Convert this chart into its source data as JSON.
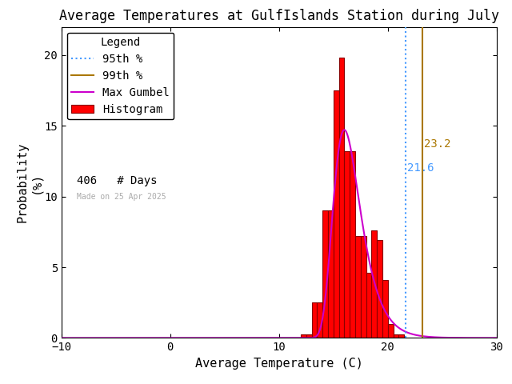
{
  "title": "Average Temperatures at GulfIslands Station during July",
  "xlabel": "Average Temperature (C)",
  "ylabel": "Probability\n(%)",
  "xlim": [
    -10,
    30
  ],
  "ylim": [
    0,
    22
  ],
  "yticks": [
    0,
    5,
    10,
    15,
    20
  ],
  "xticks": [
    -10,
    0,
    10,
    20,
    30
  ],
  "bar_left_edges": [
    12.0,
    12.5,
    13.0,
    13.5,
    14.0,
    14.5,
    15.0,
    15.5,
    16.0,
    16.5,
    17.0,
    17.5,
    18.0,
    18.5,
    19.0,
    19.5,
    20.0,
    20.5,
    21.0
  ],
  "bar_heights": [
    0.25,
    0.25,
    2.5,
    2.5,
    9.0,
    9.0,
    17.5,
    19.8,
    13.2,
    13.2,
    7.2,
    7.2,
    4.6,
    7.6,
    6.9,
    4.1,
    1.0,
    0.25,
    0.25
  ],
  "bin_width": 0.5,
  "bar_color": "#ff0000",
  "bar_edge_color": "#880000",
  "gumbel_mu": 16.0,
  "gumbel_beta": 1.25,
  "gumbel_scale": 1.0,
  "pct95": 21.6,
  "pct99": 23.2,
  "pct95_color": "#4499ff",
  "pct99_color": "#aa7700",
  "pct95_label_color": "#4499ff",
  "pct99_label_color": "#aa7700",
  "gumbel_color": "#cc00cc",
  "n_days": 406,
  "made_on": "Made on 25 Apr 2025",
  "made_on_color": "#aaaaaa",
  "bg_color": "#ffffff",
  "title_fontsize": 12,
  "axis_fontsize": 11,
  "tick_fontsize": 10,
  "legend_fontsize": 10
}
